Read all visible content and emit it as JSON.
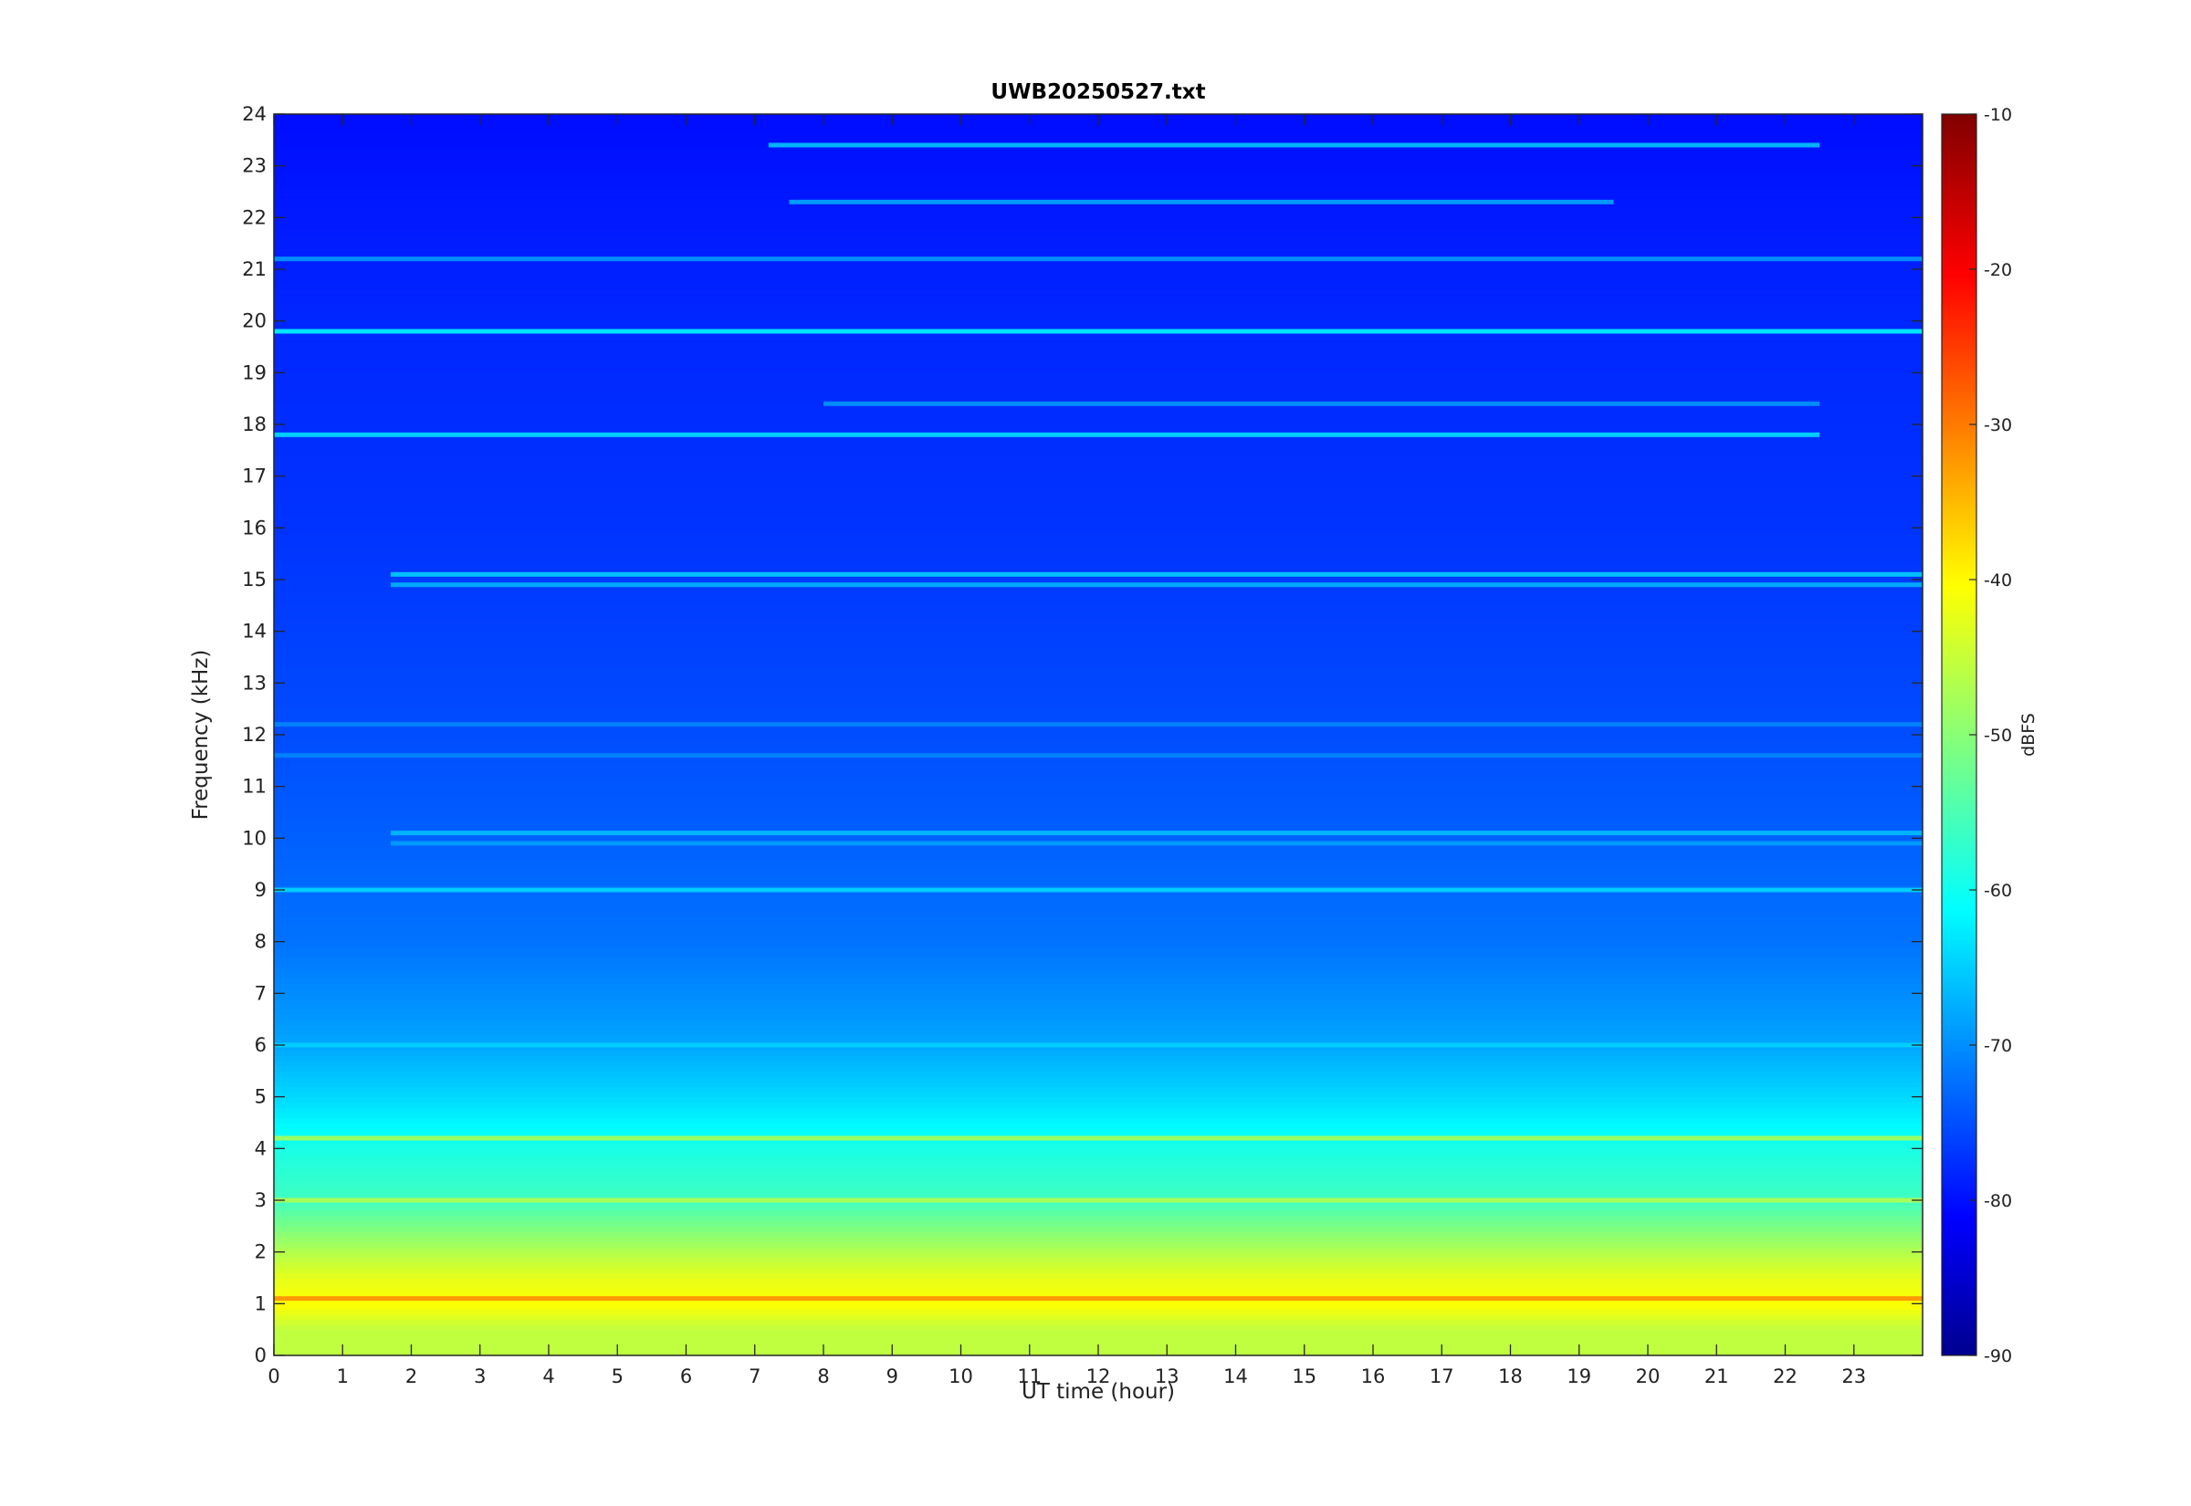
{
  "chart_data": {
    "type": "heatmap",
    "title": "UWB20250527.txt",
    "xlabel": "UT time (hour)",
    "ylabel": "Frequency (kHz)",
    "xlim": [
      0,
      24
    ],
    "ylim": [
      0,
      24
    ],
    "x_ticks": [
      "0",
      "1",
      "2",
      "3",
      "4",
      "5",
      "6",
      "7",
      "8",
      "9",
      "10",
      "11",
      "12",
      "13",
      "14",
      "15",
      "16",
      "17",
      "18",
      "19",
      "20",
      "21",
      "22",
      "23"
    ],
    "y_ticks": [
      "0",
      "1",
      "2",
      "3",
      "4",
      "5",
      "6",
      "7",
      "8",
      "9",
      "10",
      "11",
      "12",
      "13",
      "14",
      "15",
      "16",
      "17",
      "18",
      "19",
      "20",
      "21",
      "22",
      "23",
      "24"
    ],
    "colorbar": {
      "label": "dBFS",
      "range": [
        -90,
        -10
      ],
      "ticks": [
        "-10",
        "-20",
        "-30",
        "-40",
        "-50",
        "-60",
        "-70",
        "-80",
        "-90"
      ],
      "colormap": "jet"
    },
    "intensity_profile_dBFS": [
      {
        "freq_khz": 0.5,
        "level": -45
      },
      {
        "freq_khz": 1.0,
        "level": -40
      },
      {
        "freq_khz": 1.5,
        "level": -42
      },
      {
        "freq_khz": 2.0,
        "level": -46
      },
      {
        "freq_khz": 3.0,
        "level": -55
      },
      {
        "freq_khz": 4.0,
        "level": -58
      },
      {
        "freq_khz": 5.0,
        "level": -63
      },
      {
        "freq_khz": 6.0,
        "level": -67
      },
      {
        "freq_khz": 8.0,
        "level": -71
      },
      {
        "freq_khz": 12.0,
        "level": -74
      },
      {
        "freq_khz": 16.0,
        "level": -76
      },
      {
        "freq_khz": 20.0,
        "level": -77
      },
      {
        "freq_khz": 24.0,
        "level": -79
      }
    ],
    "tonal_lines_khz": [
      {
        "freq_khz": 19.8,
        "level": -62,
        "t_start": 0,
        "t_end": 24
      },
      {
        "freq_khz": 17.8,
        "level": -64,
        "t_start": 0,
        "t_end": 22.5
      },
      {
        "freq_khz": 18.4,
        "level": -69,
        "t_start": 8,
        "t_end": 22.5
      },
      {
        "freq_khz": 23.4,
        "level": -66,
        "t_start": 7.2,
        "t_end": 22.5
      },
      {
        "freq_khz": 22.3,
        "level": -68,
        "t_start": 7.5,
        "t_end": 19.5
      },
      {
        "freq_khz": 21.2,
        "level": -69,
        "t_start": 0,
        "t_end": 24
      },
      {
        "freq_khz": 15.1,
        "level": -65,
        "t_start": 1.7,
        "t_end": 24
      },
      {
        "freq_khz": 14.9,
        "level": -67,
        "t_start": 1.7,
        "t_end": 24
      },
      {
        "freq_khz": 10.1,
        "level": -66,
        "t_start": 1.7,
        "t_end": 24
      },
      {
        "freq_khz": 9.9,
        "level": -68,
        "t_start": 1.7,
        "t_end": 24
      },
      {
        "freq_khz": 9.0,
        "level": -64,
        "t_start": 0,
        "t_end": 24
      },
      {
        "freq_khz": 12.2,
        "level": -70,
        "t_start": 0,
        "t_end": 24
      },
      {
        "freq_khz": 11.6,
        "level": -70,
        "t_start": 0,
        "t_end": 24
      },
      {
        "freq_khz": 6.0,
        "level": -64,
        "t_start": 0,
        "t_end": 24
      },
      {
        "freq_khz": 4.2,
        "level": -48,
        "t_start": 0,
        "t_end": 24
      },
      {
        "freq_khz": 3.0,
        "level": -47,
        "t_start": 0,
        "t_end": 24
      },
      {
        "freq_khz": 1.1,
        "level": -32,
        "t_start": 0,
        "t_end": 24
      }
    ]
  }
}
